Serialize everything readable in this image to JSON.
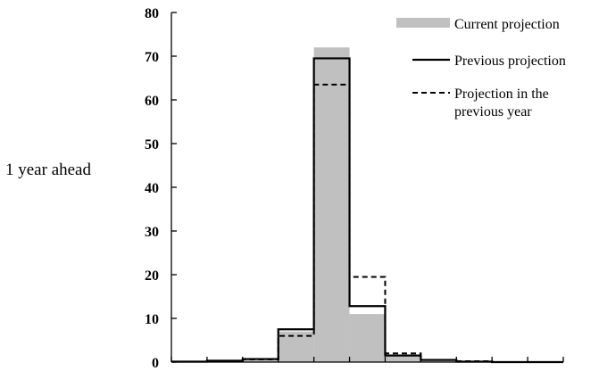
{
  "side_label": "1 year ahead",
  "chart_data": {
    "type": "bar",
    "title": "",
    "xlabel": "",
    "ylabel": "",
    "ylim": [
      0,
      80
    ],
    "yticks": [
      0,
      10,
      20,
      30,
      40,
      50,
      60,
      70,
      80
    ],
    "bin_count": 11,
    "grid": false,
    "legend_position": "top-right",
    "series": [
      {
        "name": "Current projection",
        "style": "gray-bars",
        "color": "#c0c0c0",
        "values": [
          0.1,
          0.3,
          0.6,
          7.0,
          72,
          11,
          1.5,
          0.4,
          0.1,
          0,
          0
        ]
      },
      {
        "name": "Previous projection",
        "style": "solid-step",
        "color": "#000000",
        "values": [
          0.1,
          0.3,
          0.7,
          7.5,
          69.5,
          12.8,
          1.5,
          0.5,
          0.1,
          0,
          0
        ]
      },
      {
        "name": "Projection in the previous year",
        "style": "dashed-step",
        "color": "#000000",
        "values": [
          0.1,
          0.3,
          0.6,
          6.0,
          63.5,
          19.5,
          2.0,
          0.5,
          0.2,
          0,
          0
        ]
      }
    ],
    "legend": {
      "current": "Current projection",
      "previous": "Previous projection",
      "prev_year_line1": "Projection in the",
      "prev_year_line2": "previous year"
    }
  }
}
